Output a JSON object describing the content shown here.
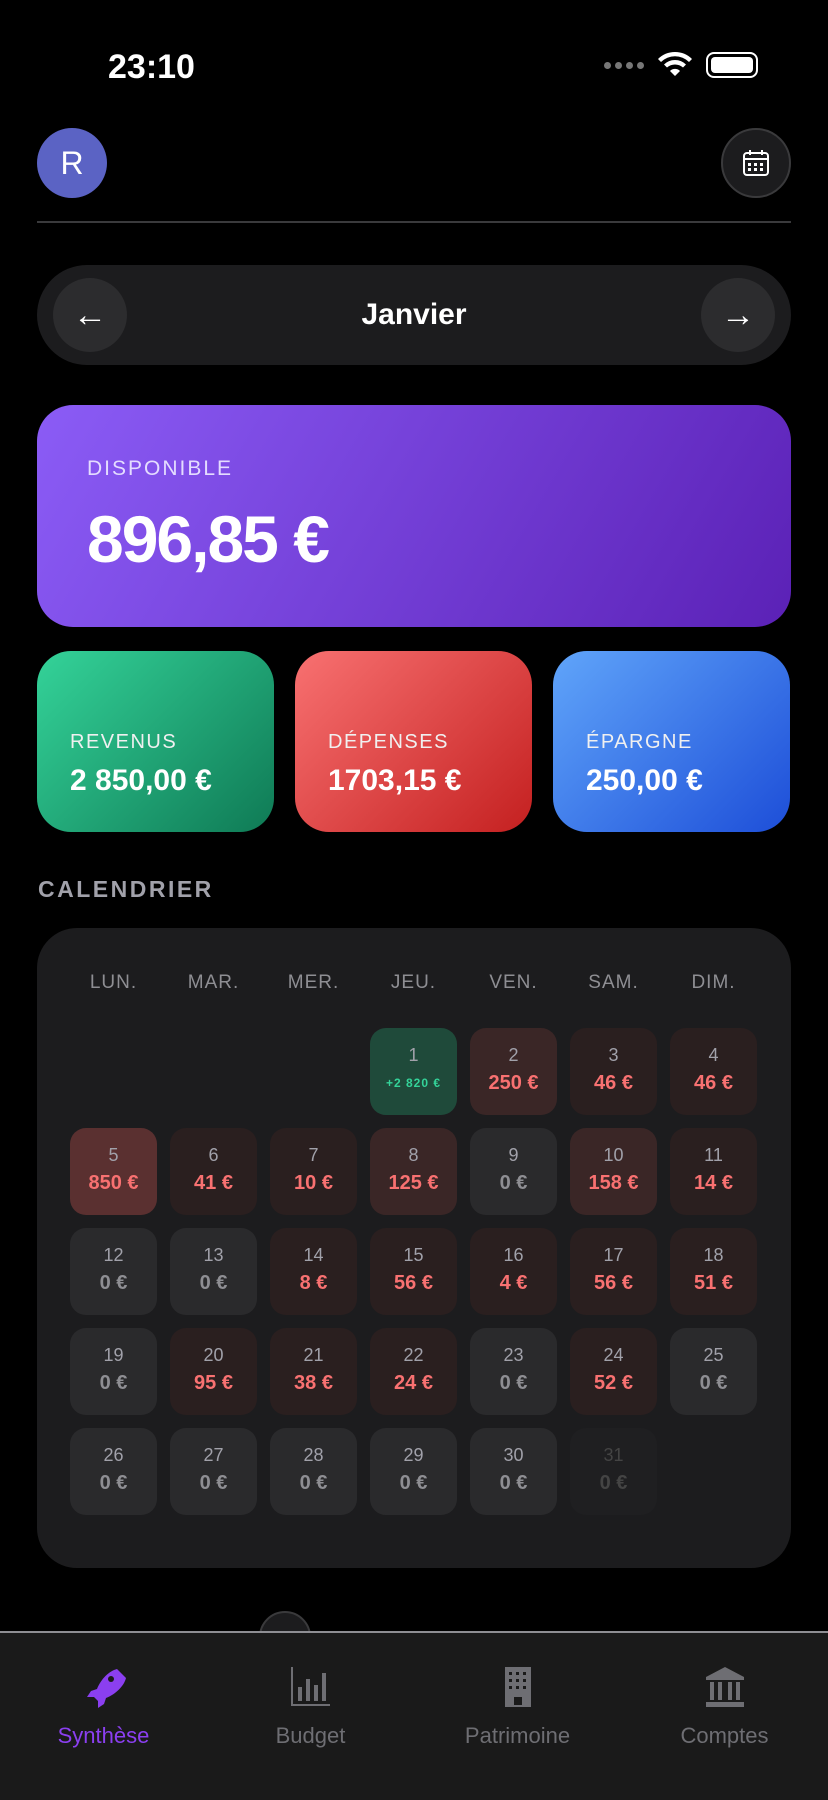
{
  "status": {
    "time": "23:10"
  },
  "header": {
    "avatar_initial": "R"
  },
  "month_nav": {
    "month": "Janvier"
  },
  "summary": {
    "label": "DISPONIBLE",
    "value": "896,85 €"
  },
  "cards": [
    {
      "label": "REVENUS",
      "value": "2 850,00 €"
    },
    {
      "label": "DÉPENSES",
      "value": "1703,15 €"
    },
    {
      "label": "ÉPARGNE",
      "value": "250,00 €"
    }
  ],
  "calendar": {
    "title": "CALENDRIER",
    "weekdays": [
      "LUN.",
      "MAR.",
      "MER.",
      "JEU.",
      "VEN.",
      "SAM.",
      "DIM."
    ],
    "days": [
      {
        "day": "1",
        "amount": "+2 820 €",
        "kind": "inc"
      },
      {
        "day": "2",
        "amount": "250 €",
        "kind": "mid"
      },
      {
        "day": "3",
        "amount": "46 €",
        "kind": "low"
      },
      {
        "day": "4",
        "amount": "46 €",
        "kind": "low"
      },
      {
        "day": "5",
        "amount": "850 €",
        "kind": "high"
      },
      {
        "day": "6",
        "amount": "41 €",
        "kind": "low"
      },
      {
        "day": "7",
        "amount": "10 €",
        "kind": "low"
      },
      {
        "day": "8",
        "amount": "125 €",
        "kind": "mid"
      },
      {
        "day": "9",
        "amount": "0 €",
        "kind": "zero"
      },
      {
        "day": "10",
        "amount": "158 €",
        "kind": "mid"
      },
      {
        "day": "11",
        "amount": "14 €",
        "kind": "low"
      },
      {
        "day": "12",
        "amount": "0 €",
        "kind": "zero"
      },
      {
        "day": "13",
        "amount": "0 €",
        "kind": "zero"
      },
      {
        "day": "14",
        "amount": "8 €",
        "kind": "low"
      },
      {
        "day": "15",
        "amount": "56 €",
        "kind": "low"
      },
      {
        "day": "16",
        "amount": "4 €",
        "kind": "low"
      },
      {
        "day": "17",
        "amount": "56 €",
        "kind": "low"
      },
      {
        "day": "18",
        "amount": "51 €",
        "kind": "low"
      },
      {
        "day": "19",
        "amount": "0 €",
        "kind": "zero"
      },
      {
        "day": "20",
        "amount": "95 €",
        "kind": "low"
      },
      {
        "day": "21",
        "amount": "38 €",
        "kind": "low"
      },
      {
        "day": "22",
        "amount": "24 €",
        "kind": "low"
      },
      {
        "day": "23",
        "amount": "0 €",
        "kind": "zero"
      },
      {
        "day": "24",
        "amount": "52 €",
        "kind": "low"
      },
      {
        "day": "25",
        "amount": "0 €",
        "kind": "zero"
      },
      {
        "day": "26",
        "amount": "0 €",
        "kind": "zero"
      },
      {
        "day": "27",
        "amount": "0 €",
        "kind": "zero"
      },
      {
        "day": "28",
        "amount": "0 €",
        "kind": "zero"
      },
      {
        "day": "29",
        "amount": "0 €",
        "kind": "zero"
      },
      {
        "day": "30",
        "amount": "0 €",
        "kind": "zero"
      },
      {
        "day": "31",
        "amount": "0 €",
        "kind": "fade"
      }
    ],
    "first_weekday_index": 3
  },
  "tabs": [
    {
      "label": "Synthèse",
      "icon": "rocket-icon",
      "active": true
    },
    {
      "label": "Budget",
      "icon": "bar-chart-icon"
    },
    {
      "label": "Patrimoine",
      "icon": "building-icon"
    },
    {
      "label": "Comptes",
      "icon": "bank-icon"
    }
  ],
  "colors": {
    "accent": "#8b3ff0",
    "income": "#34d399",
    "expense": "#f87171"
  }
}
